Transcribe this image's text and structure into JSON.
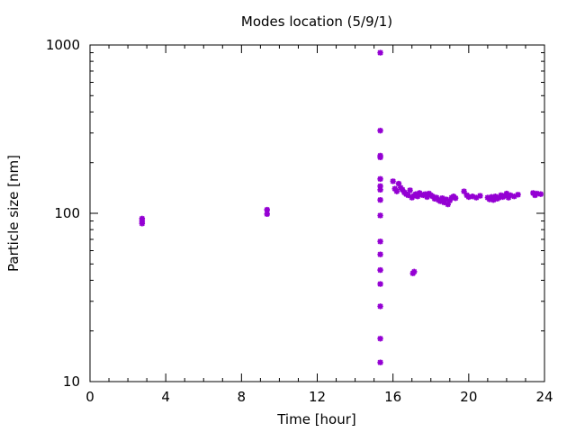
{
  "chart_data": {
    "type": "scatter",
    "title": "Modes location (5/9/1)",
    "xlabel": "Time [hour]",
    "ylabel": "Particle size [nm]",
    "xlim": [
      0,
      24
    ],
    "ylim": [
      10,
      1000
    ],
    "yscale": "log",
    "xticks": [
      0,
      4,
      8,
      12,
      16,
      20,
      24
    ],
    "yticks": [
      10,
      100,
      1000
    ],
    "grid": false,
    "legend": "none",
    "marker_color": "#9400d3",
    "series": [
      {
        "x": [
          2.75,
          2.75,
          2.75,
          9.35,
          9.35,
          15.33,
          15.33,
          15.33,
          15.33,
          15.33,
          15.33,
          15.33,
          15.33,
          15.33,
          15.33,
          15.33,
          15.33,
          15.33,
          15.33,
          15.33,
          15.33,
          17.05,
          17.12,
          16.0,
          16.1,
          16.2,
          16.3,
          16.4,
          16.5,
          16.6,
          16.7,
          16.8,
          16.9,
          17.0,
          17.1,
          17.2,
          17.3,
          17.4,
          17.5,
          17.6,
          17.7,
          17.8,
          17.9,
          18.0,
          18.1,
          18.2,
          18.3,
          18.4,
          18.5,
          18.6,
          18.7,
          18.8,
          18.9,
          19.0,
          19.1,
          19.2,
          19.3,
          19.75,
          19.9,
          20.0,
          20.2,
          20.4,
          20.6,
          21.0,
          21.1,
          21.2,
          21.3,
          21.4,
          21.5,
          21.6,
          21.7,
          21.8,
          21.9,
          22.0,
          22.1,
          22.2,
          22.4,
          22.6,
          23.4,
          23.5,
          23.6,
          23.8
        ],
        "y": [
          93,
          90,
          87,
          105,
          99,
          900,
          310,
          215,
          160,
          138,
          120,
          97,
          68,
          57,
          46,
          38,
          28,
          18,
          13,
          220,
          145,
          44,
          45,
          155,
          140,
          135,
          150,
          142,
          138,
          133,
          130,
          128,
          137,
          124,
          127,
          130,
          126,
          132,
          129,
          128,
          130,
          125,
          131,
          128,
          126,
          122,
          124,
          120,
          118,
          123,
          116,
          121,
          113,
          119,
          124,
          126,
          123,
          135,
          128,
          125,
          126,
          124,
          127,
          124,
          121,
          125,
          120,
          126,
          122,
          124,
          128,
          125,
          127,
          131,
          124,
          128,
          126,
          129,
          132,
          128,
          131,
          130
        ]
      }
    ]
  }
}
